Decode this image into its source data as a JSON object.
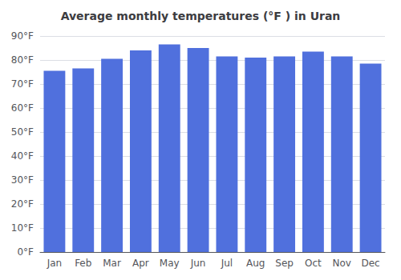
{
  "chart_data": {
    "type": "bar",
    "title": "Average monthly temperatures (°F ) in Uran",
    "categories": [
      "Jan",
      "Feb",
      "Mar",
      "Apr",
      "May",
      "Jun",
      "Jul",
      "Aug",
      "Sep",
      "Oct",
      "Nov",
      "Dec"
    ],
    "values": [
      75.5,
      76.5,
      80.5,
      84.0,
      86.5,
      85.0,
      81.5,
      81.0,
      81.5,
      83.5,
      81.5,
      78.5
    ],
    "ylim": [
      0,
      90
    ],
    "yticks": [
      {
        "value": 0,
        "label": "0°F"
      },
      {
        "value": 10,
        "label": "10°F"
      },
      {
        "value": 20,
        "label": "20°F"
      },
      {
        "value": 30,
        "label": "30°F"
      },
      {
        "value": 40,
        "label": "40°F"
      },
      {
        "value": 50,
        "label": "50°F"
      },
      {
        "value": 60,
        "label": "60°F"
      },
      {
        "value": 70,
        "label": "70°F"
      },
      {
        "value": 80,
        "label": "80°F"
      },
      {
        "value": 90,
        "label": "90°F"
      }
    ],
    "grid": true
  }
}
